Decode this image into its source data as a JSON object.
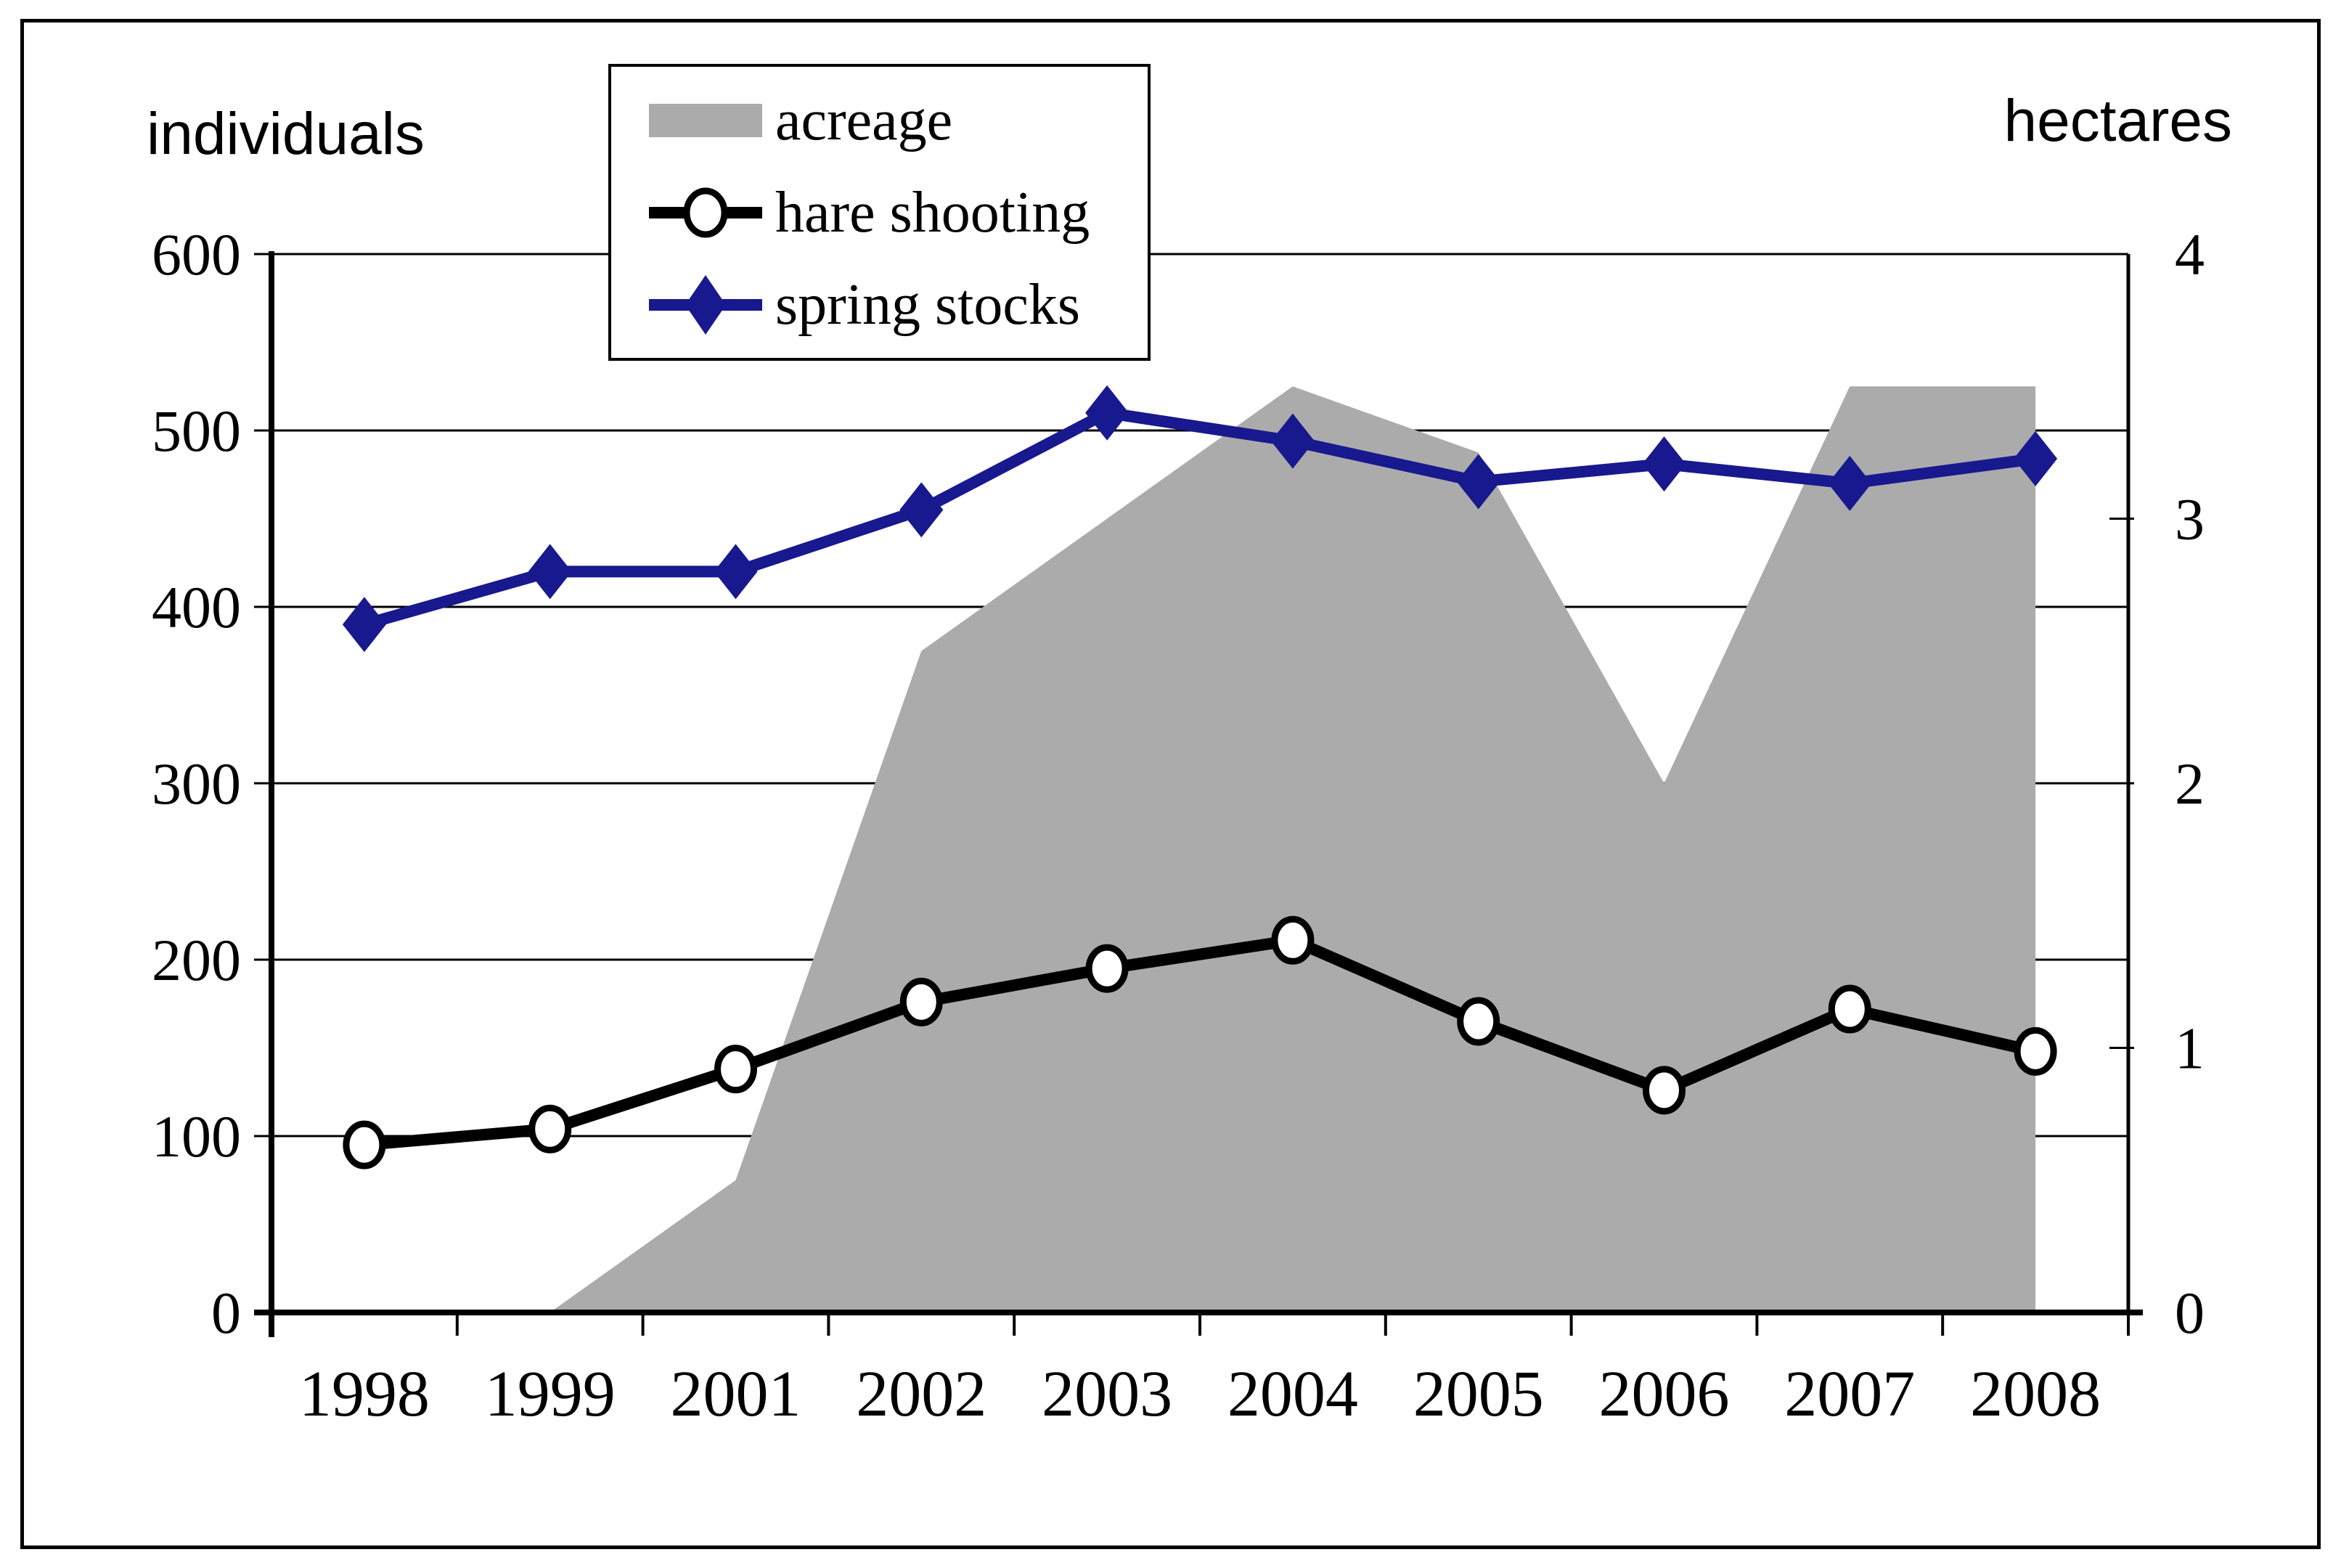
{
  "figure": {
    "background": "#ffffff",
    "border_color": "#000000",
    "grid_color": "#000000",
    "area_color": "#ABABAB",
    "hare_color": "#000000",
    "spring_color": "#18188F"
  },
  "axes": {
    "left_title": "individuals",
    "right_title": "hectares",
    "left_ticks": [
      "0",
      "100",
      "200",
      "300",
      "400",
      "500",
      "600"
    ],
    "right_ticks": [
      "0",
      "1",
      "2",
      "3",
      "4"
    ],
    "x_ticks": [
      "1998",
      "1999",
      "2001",
      "2002",
      "2003",
      "2004",
      "2005",
      "2006",
      "2007",
      "2008"
    ]
  },
  "legend": {
    "items": [
      {
        "label": "acreage",
        "swatch": "area-swatch",
        "color": "#ABABAB"
      },
      {
        "label": "hare shooting",
        "swatch": "line-circle-swatch",
        "color": "#000000"
      },
      {
        "label": "spring stocks",
        "swatch": "line-diamond-swatch",
        "color": "#18188F"
      }
    ]
  },
  "chart_data": {
    "type": "combo",
    "categories": [
      "1998",
      "1999",
      "2001",
      "2002",
      "2003",
      "2004",
      "2005",
      "2006",
      "2007",
      "2008"
    ],
    "series": [
      {
        "name": "acreage",
        "type": "area",
        "axis": "right",
        "unit": "hectares",
        "color": "#ABABAB",
        "values": [
          0,
          0,
          0.5,
          2.5,
          3.0,
          3.5,
          3.25,
          2.0,
          3.5,
          3.5
        ]
      },
      {
        "name": "hare shooting",
        "type": "line",
        "marker": "circle",
        "axis": "left",
        "unit": "individuals",
        "color": "#000000",
        "values": [
          95,
          104,
          138,
          176,
          195,
          211,
          165,
          126,
          172,
          148
        ]
      },
      {
        "name": "spring stocks",
        "type": "line",
        "marker": "diamond",
        "axis": "left",
        "unit": "individuals",
        "color": "#18188F",
        "values": [
          390,
          420,
          420,
          455,
          510,
          494,
          471,
          481,
          470,
          484
        ]
      }
    ],
    "left_axis": {
      "label": "individuals",
      "range": [
        0,
        600
      ],
      "tick_step": 100
    },
    "right_axis": {
      "label": "hectares",
      "range": [
        0,
        4
      ],
      "tick_step": 1
    },
    "right_axis_scale_to_left": 150,
    "grid": true,
    "legend_position": "top-left-overlay"
  }
}
